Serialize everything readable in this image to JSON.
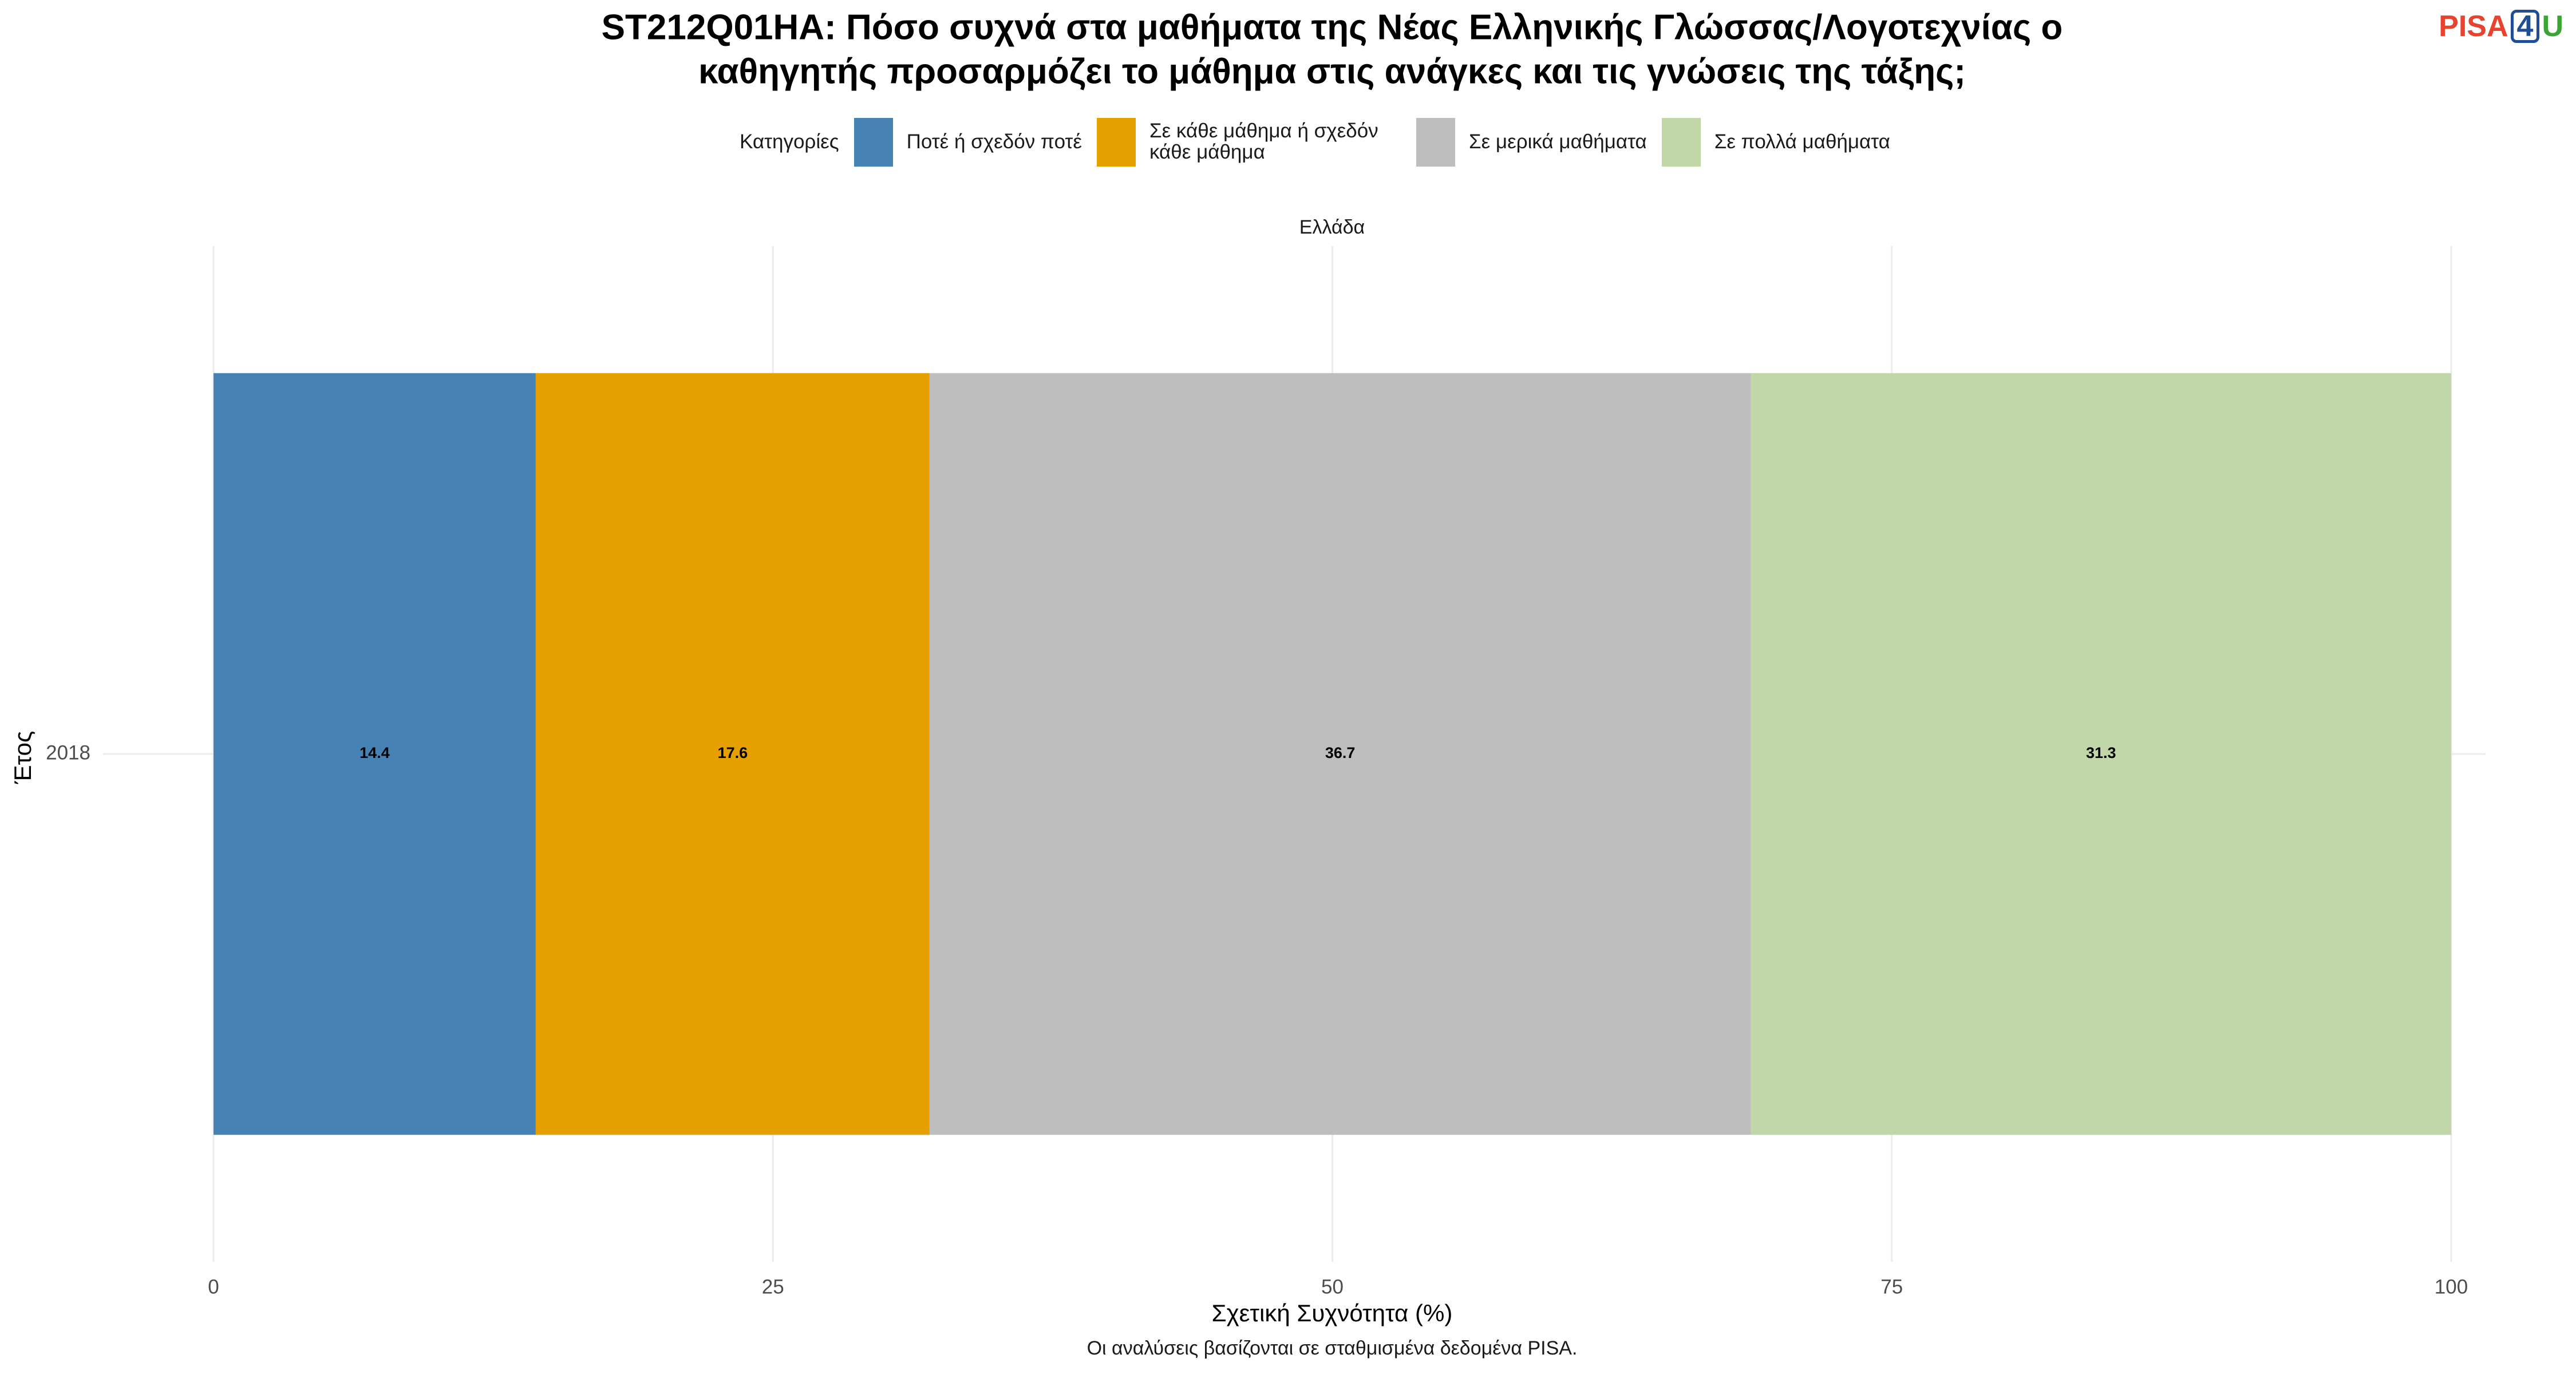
{
  "chart_data": {
    "type": "stacked_barh",
    "title": [
      "ST212Q01HA: Πόσο συχνά στα μαθήματα της Νέας Ελληνικής Γλώσσας/Λογοτεχνίας ο",
      "καθηγητής προσαρμόζει το μάθημα στις ανάγκες και τις γνώσεις της τάξης;"
    ],
    "legend_title": "Κατηγορίες",
    "facet_label": "Ελλάδα",
    "categories": [
      "2018"
    ],
    "series": [
      {
        "name": "Ποτέ ή σχεδόν ποτέ",
        "color": "#4682b4",
        "values": [
          14.4
        ]
      },
      {
        "name": "Σε κάθε μάθημα ή σχεδόν κάθε μάθημα",
        "color": "#e5a000",
        "values": [
          17.6
        ]
      },
      {
        "name": "Σε μερικά μαθήματα",
        "color": "#bebebe",
        "values": [
          36.7
        ]
      },
      {
        "name": "Σε πολλά μαθήματα",
        "color": "#c2d7a7",
        "values": [
          31.3
        ]
      }
    ],
    "xlim": [
      0,
      100
    ],
    "xticks": [
      0,
      25,
      50,
      75,
      100
    ],
    "grid": true,
    "xlabel": "Σχετική Συχνότητα (%)",
    "ylabel": "Έτος",
    "caption": "Οι αναλύσεις βασίζονται σε σταθμισμένα δεδομένα PISA."
  },
  "logo": [
    "PISA",
    "4",
    "U"
  ]
}
